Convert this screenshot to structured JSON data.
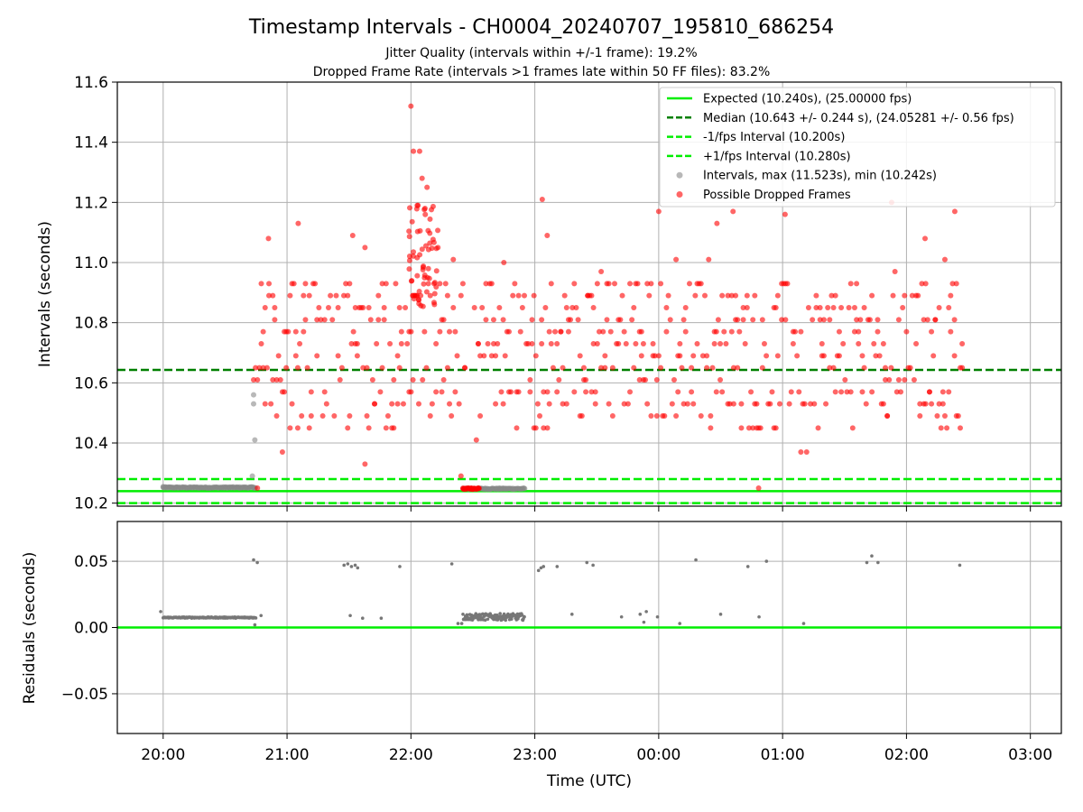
{
  "title": "Timestamp Intervals - CH0004_20240707_195810_686254",
  "subtitle_1": "Jitter Quality (intervals within +/-1 frame): 19.2%",
  "subtitle_2": "Dropped Frame Rate (intervals >1 frames late within 50 FF files): 83.2%",
  "colors": {
    "expected": "#00ee00",
    "median": "#007f00",
    "fps_bounds": "#00ee00",
    "intervals": "#888888",
    "dropped": "#ff0000",
    "residuals": "#777777",
    "grid": "#b0b0b0"
  },
  "chart_data": [
    {
      "type": "scatter",
      "panel": "top",
      "xlabel": "",
      "ylabel": "Intervals (seconds)",
      "x_unit": "hours since 20:00 UTC (2024-07-07)",
      "xlim": [
        -0.37,
        7.25
      ],
      "ylim": [
        10.19,
        11.6
      ],
      "yticks": [
        10.2,
        10.4,
        10.6,
        10.8,
        11.0,
        11.2,
        11.4,
        11.6
      ],
      "ytick_labels": [
        "10.2",
        "10.4",
        "10.6",
        "10.8",
        "11.0",
        "11.2",
        "11.4",
        "11.6"
      ],
      "grid": true,
      "legend_position": "top-right",
      "hlines": [
        {
          "name": "Expected (10.240s), (25.00000 fps)",
          "y": 10.24,
          "style": "solid"
        },
        {
          "name": "Median (10.643 +/- 0.244 s), (24.05281 +/- 0.56 fps)",
          "y": 10.643,
          "style": "dashed"
        },
        {
          "name": "-1/fps Interval (10.200s)",
          "y": 10.2,
          "style": "dashed"
        },
        {
          "name": "+1/fps Interval (10.280s)",
          "y": 10.28,
          "style": "dashed"
        }
      ],
      "series": [
        {
          "name": "Intervals, max (11.523s), min (10.242s)",
          "segments": [
            {
              "x_start": 0.0,
              "x_end": 0.75,
              "y": 10.252
            },
            {
              "x_start": 2.42,
              "x_end": 2.92,
              "y": 10.248
            }
          ],
          "points": [
            [
              0.0,
              10.255
            ],
            [
              0.72,
              10.29
            ],
            [
              0.74,
              10.41
            ],
            [
              0.73,
              10.53
            ],
            [
              0.73,
              10.56
            ]
          ],
          "ymax": 11.523,
          "ymin": 10.242
        },
        {
          "name": "Possible Dropped Frames",
          "x_range": [
            0.73,
            2.47
          ],
          "y_levels": [
            10.25,
            10.29,
            10.33,
            10.37,
            10.41,
            10.45,
            10.49,
            10.53,
            10.57,
            10.61,
            10.65,
            10.69,
            10.73,
            10.77,
            10.81,
            10.85,
            10.89,
            10.93,
            10.97,
            11.01,
            11.05
          ],
          "outliers": [
            [
              1.09,
              11.13
            ],
            [
              0.85,
              11.08
            ],
            [
              1.53,
              11.09
            ],
            [
              2.0,
              11.52
            ],
            [
              2.07,
              11.37
            ],
            [
              2.02,
              11.37
            ],
            [
              2.09,
              11.28
            ],
            [
              2.13,
              11.25
            ],
            [
              3.06,
              11.21
            ],
            [
              3.1,
              11.09
            ],
            [
              4.0,
              11.17
            ],
            [
              4.47,
              11.13
            ],
            [
              4.6,
              11.17
            ],
            [
              5.02,
              11.16
            ],
            [
              5.88,
              11.2
            ],
            [
              6.39,
              11.17
            ],
            [
              6.15,
              11.08
            ],
            [
              2.75,
              11.0
            ]
          ],
          "cluster_22h": {
            "x_range": [
              1.98,
              2.22
            ],
            "y_range": [
              10.85,
              11.2
            ]
          },
          "tail_cluster": {
            "x_range": [
              2.42,
              2.55
            ],
            "y": 10.248
          }
        }
      ]
    },
    {
      "type": "scatter",
      "panel": "bottom",
      "xlabel": "Time (UTC)",
      "ylabel": "Residuals (seconds)",
      "x_unit": "hours since 20:00 UTC (2024-07-07)",
      "xlim": [
        -0.37,
        7.25
      ],
      "ylim": [
        -0.08,
        0.08
      ],
      "yticks": [
        -0.05,
        0.0,
        0.05
      ],
      "ytick_labels": [
        "−0.05",
        "0.00",
        "0.05"
      ],
      "xticks": [
        0,
        1,
        2,
        3,
        4,
        5,
        6,
        7
      ],
      "xtick_labels": [
        "20:00",
        "21:00",
        "22:00",
        "23:00",
        "00:00",
        "01:00",
        "02:00",
        "03:00"
      ],
      "grid": true,
      "zero_line": 0.0,
      "series": [
        {
          "name": "Residuals",
          "segments": [
            {
              "x_start": 0.0,
              "x_end": 0.75,
              "y": 0.0075
            },
            {
              "x_start": 2.42,
              "x_end": 2.92,
              "y": 0.008
            }
          ],
          "points": [
            [
              -0.02,
              0.012
            ],
            [
              0.73,
              0.051
            ],
            [
              0.76,
              0.049
            ],
            [
              0.74,
              0.002
            ],
            [
              0.79,
              0.009
            ],
            [
              1.46,
              0.047
            ],
            [
              1.49,
              0.048
            ],
            [
              1.52,
              0.046
            ],
            [
              1.55,
              0.047
            ],
            [
              1.57,
              0.045
            ],
            [
              1.51,
              0.009
            ],
            [
              1.61,
              0.007
            ],
            [
              1.76,
              0.007
            ],
            [
              1.91,
              0.046
            ],
            [
              2.33,
              0.048
            ],
            [
              2.38,
              0.003
            ],
            [
              2.41,
              0.003
            ],
            [
              2.45,
              0.007
            ],
            [
              3.03,
              0.043
            ],
            [
              3.05,
              0.045
            ],
            [
              3.07,
              0.046
            ],
            [
              3.18,
              0.046
            ],
            [
              3.3,
              0.01
            ],
            [
              3.42,
              0.049
            ],
            [
              3.47,
              0.047
            ],
            [
              3.7,
              0.008
            ],
            [
              3.85,
              0.01
            ],
            [
              3.88,
              0.004
            ],
            [
              3.9,
              0.012
            ],
            [
              3.99,
              0.008
            ],
            [
              4.17,
              0.003
            ],
            [
              4.3,
              0.051
            ],
            [
              4.5,
              0.01
            ],
            [
              4.72,
              0.046
            ],
            [
              4.81,
              0.008
            ],
            [
              4.87,
              0.05
            ],
            [
              5.17,
              0.003
            ],
            [
              5.68,
              0.049
            ],
            [
              5.72,
              0.054
            ],
            [
              5.77,
              0.049
            ],
            [
              6.43,
              0.047
            ]
          ]
        }
      ]
    }
  ]
}
